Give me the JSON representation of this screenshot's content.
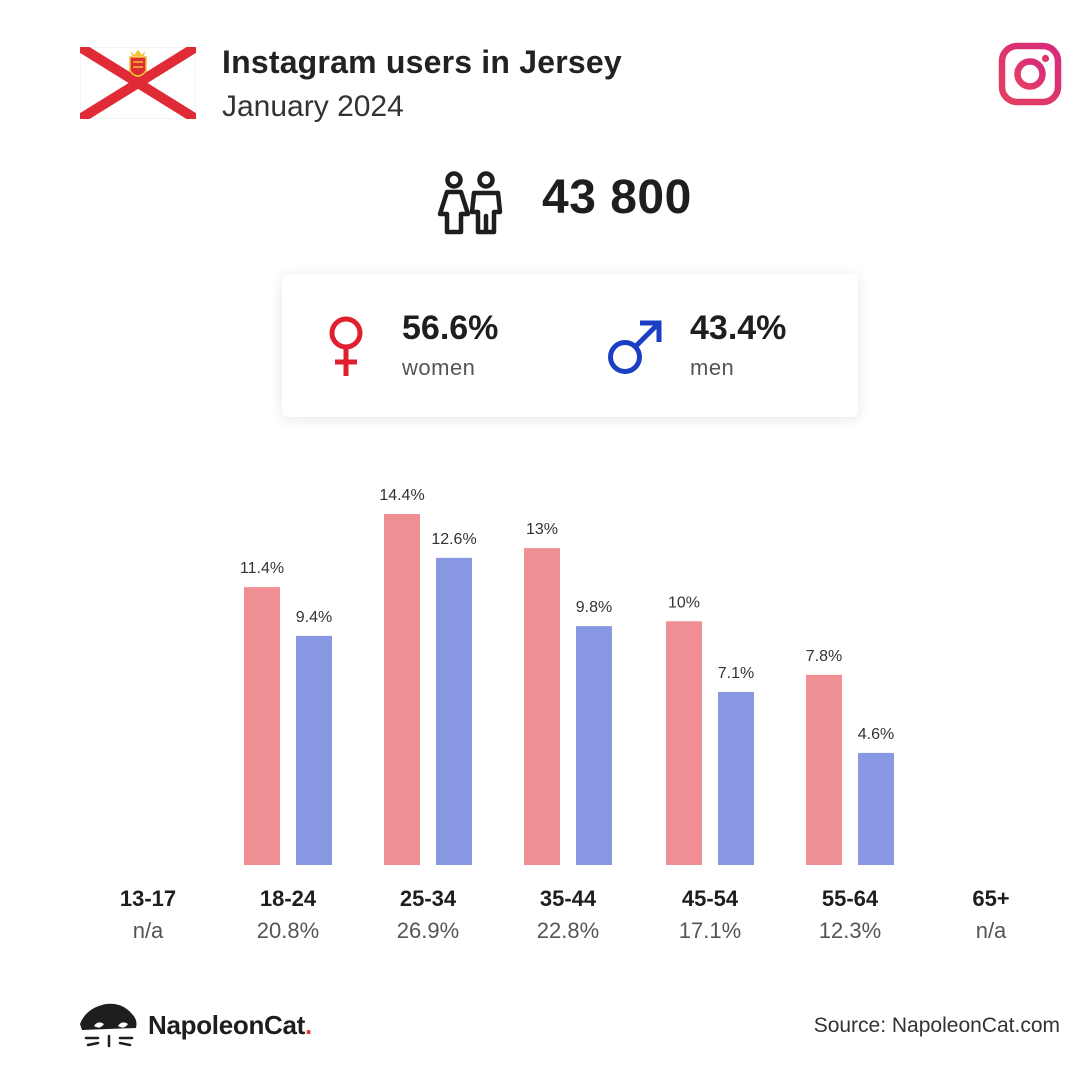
{
  "header": {
    "title": "Instagram users in Jersey",
    "subtitle": "January 2024",
    "flag_icon": "jersey-flag-icon",
    "brand_icon": "instagram-icon"
  },
  "total": {
    "icon": "users-icon",
    "value": "43 800"
  },
  "gender": {
    "women": {
      "percent": "56.6%",
      "label": "women",
      "icon": "female-symbol-icon",
      "color": "#e0202e"
    },
    "men": {
      "percent": "43.4%",
      "label": "men",
      "icon": "male-symbol-icon",
      "color": "#1a3fc4"
    }
  },
  "chart_data": {
    "type": "bar",
    "categories": [
      "13-17",
      "18-24",
      "25-34",
      "35-44",
      "45-54",
      "55-64",
      "65+"
    ],
    "category_totals": [
      "n/a",
      "20.8%",
      "26.9%",
      "22.8%",
      "17.1%",
      "12.3%",
      "n/a"
    ],
    "series": [
      {
        "values": [
          null,
          11.4,
          14.4,
          13,
          10,
          7.8,
          null
        ],
        "labels": [
          "",
          "11.4%",
          "14.4%",
          "13%",
          "10%",
          "7.8%",
          ""
        ],
        "color": "#ef8f94"
      },
      {
        "values": [
          null,
          9.4,
          12.6,
          9.8,
          7.1,
          4.6,
          null
        ],
        "labels": [
          "",
          "9.4%",
          "12.6%",
          "9.8%",
          "7.1%",
          "4.6%",
          ""
        ],
        "color": "#8898e2"
      }
    ],
    "ylim": [
      0,
      14.4
    ],
    "grid": false,
    "legend": "none"
  },
  "footer": {
    "brand": "NapoleonCat",
    "brand_dot": ".",
    "brand_dot_color": "#e03a3e",
    "logo_icon": "napoleoncat-logo-icon",
    "source": "Source: NapoleonCat.com"
  }
}
